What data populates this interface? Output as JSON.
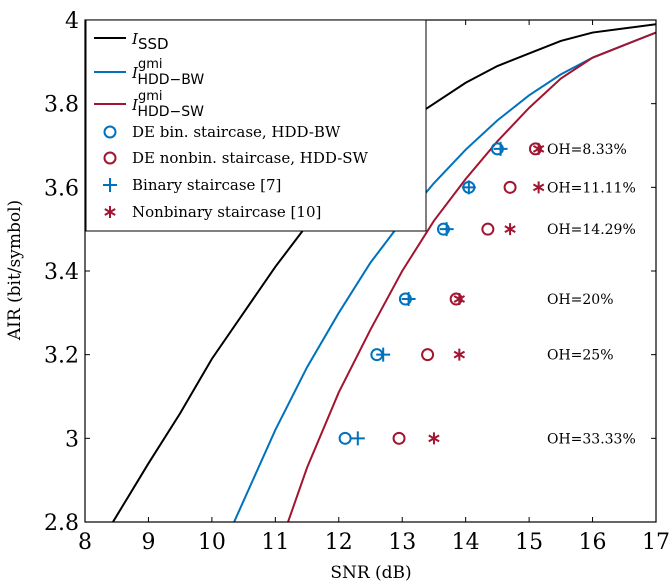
{
  "chart_data": {
    "type": "line",
    "xlabel": "SNR (dB)",
    "ylabel": "AIR (bit/symbol)",
    "xlim": [
      8,
      17
    ],
    "ylim": [
      2.8,
      4
    ],
    "xticks": [
      "8",
      "9",
      "10",
      "11",
      "12",
      "13",
      "14",
      "15",
      "16",
      "17"
    ],
    "yticks": [
      "2.8",
      "3",
      "3.2",
      "3.4",
      "3.6",
      "3.8",
      "4"
    ],
    "legend_position": "top-left",
    "colors": {
      "black": "#000000",
      "blue": "#0072bd",
      "red": "#a2142f"
    },
    "series": [
      {
        "name": "I_SSD",
        "legend_label": "ISSD",
        "kind": "line",
        "color": "#000000",
        "x": [
          8.4,
          9.0,
          9.5,
          10.0,
          10.5,
          11.0,
          11.5,
          12.0,
          12.5,
          13.0,
          13.5,
          14.0,
          14.5,
          15.0,
          15.5,
          16.0,
          16.5,
          17.0
        ],
        "y": [
          2.79,
          2.94,
          3.06,
          3.19,
          3.3,
          3.41,
          3.51,
          3.6,
          3.68,
          3.75,
          3.8,
          3.85,
          3.89,
          3.92,
          3.95,
          3.97,
          3.98,
          3.99
        ]
      },
      {
        "name": "I_HDD-BW^gmi",
        "legend_label": "IgmiHDD−BW",
        "kind": "line",
        "color": "#0072bd",
        "x": [
          10.35,
          11.0,
          11.5,
          12.0,
          12.5,
          13.0,
          13.5,
          14.0,
          14.5,
          15.0,
          15.5,
          16.0,
          16.5,
          17.0
        ],
        "y": [
          2.8,
          3.02,
          3.17,
          3.3,
          3.42,
          3.52,
          3.61,
          3.69,
          3.76,
          3.82,
          3.87,
          3.91,
          3.94,
          3.97
        ]
      },
      {
        "name": "I_HDD-SW^gmi",
        "legend_label": "IgmiHDD−SW",
        "kind": "line",
        "color": "#a2142f",
        "x": [
          11.2,
          11.5,
          12.0,
          12.5,
          13.0,
          13.5,
          14.0,
          14.5,
          15.0,
          15.5,
          16.0,
          16.5,
          17.0
        ],
        "y": [
          2.8,
          2.93,
          3.11,
          3.26,
          3.4,
          3.52,
          3.62,
          3.71,
          3.79,
          3.86,
          3.91,
          3.94,
          3.97
        ]
      },
      {
        "name": "DE bin. staircase, HDD-BW",
        "kind": "marker",
        "marker": "circle",
        "color": "#0072bd",
        "points": [
          [
            12.1,
            3.0
          ],
          [
            12.6,
            3.2
          ],
          [
            13.05,
            3.333
          ],
          [
            13.65,
            3.5
          ],
          [
            14.05,
            3.6
          ],
          [
            14.5,
            3.692
          ]
        ]
      },
      {
        "name": "DE nonbin. staircase, HDD-SW",
        "kind": "marker",
        "marker": "circle",
        "color": "#a2142f",
        "points": [
          [
            12.95,
            3.0
          ],
          [
            13.4,
            3.2
          ],
          [
            13.85,
            3.333
          ],
          [
            14.35,
            3.5
          ],
          [
            14.7,
            3.6
          ],
          [
            15.1,
            3.692
          ]
        ]
      },
      {
        "name": "Binary staircase [7]",
        "kind": "marker",
        "marker": "plus",
        "color": "#0072bd",
        "points": [
          [
            12.3,
            3.0
          ],
          [
            12.7,
            3.2
          ],
          [
            13.1,
            3.333
          ],
          [
            13.7,
            3.5
          ],
          [
            14.05,
            3.6
          ],
          [
            14.55,
            3.692
          ]
        ]
      },
      {
        "name": "Nonbinary staircase [10]",
        "kind": "marker",
        "marker": "star",
        "color": "#a2142f",
        "points": [
          [
            13.5,
            3.0
          ],
          [
            13.9,
            3.2
          ],
          [
            13.9,
            3.333
          ],
          [
            14.7,
            3.5
          ],
          [
            15.15,
            3.6
          ],
          [
            15.15,
            3.692
          ]
        ]
      }
    ],
    "annotations": [
      {
        "text": "OH=8.33%",
        "x": 15.25,
        "y": 3.692
      },
      {
        "text": "OH=11.11%",
        "x": 15.25,
        "y": 3.6
      },
      {
        "text": "OH=14.29%",
        "x": 15.25,
        "y": 3.5
      },
      {
        "text": "OH=20%",
        "x": 15.25,
        "y": 3.333
      },
      {
        "text": "OH=25%",
        "x": 15.25,
        "y": 3.2
      },
      {
        "text": "OH=33.33%",
        "x": 15.25,
        "y": 3.0
      }
    ]
  }
}
